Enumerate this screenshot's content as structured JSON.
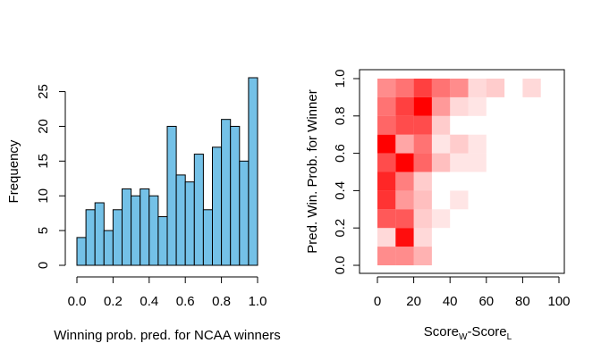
{
  "chart_data": [
    {
      "type": "bar",
      "subtype": "histogram",
      "xlabel": "Winning prob. pred. for NCAA winners",
      "ylabel": "Frequency",
      "bin_width": 0.05,
      "bin_starts": [
        0.0,
        0.05,
        0.1,
        0.15,
        0.2,
        0.25,
        0.3,
        0.35,
        0.4,
        0.45,
        0.5,
        0.55,
        0.6,
        0.65,
        0.7,
        0.75,
        0.8,
        0.85,
        0.9,
        0.95
      ],
      "values": [
        4,
        8,
        9,
        5,
        8,
        11,
        10,
        11,
        10,
        7,
        20,
        13,
        12,
        16,
        8,
        17,
        21,
        20,
        15,
        27
      ],
      "xlim": [
        0,
        1
      ],
      "ylim": [
        0,
        27
      ],
      "xticks": [
        "0.0",
        "0.2",
        "0.4",
        "0.6",
        "0.8",
        "1.0"
      ],
      "yticks": [
        "0",
        "5",
        "10",
        "15",
        "20",
        "25"
      ],
      "bar_color": "#74c1e7",
      "grid": false
    },
    {
      "type": "heatmap",
      "xlabel_main": "Score",
      "xlabel_sub_w": "W",
      "xlabel_dash": "-Score",
      "xlabel_sub_l": "L",
      "ylabel": "Pred. Win. Prob. for Winner",
      "xlim": [
        0,
        100
      ],
      "ylim": [
        0,
        1
      ],
      "x_bin_width": 10,
      "y_bin_width": 0.1,
      "xticks": [
        "0",
        "20",
        "40",
        "60",
        "80",
        "100"
      ],
      "yticks": [
        "0.0",
        "0.2",
        "0.4",
        "0.6",
        "0.8",
        "1.0"
      ],
      "color": "#ff0000",
      "cells": [
        {
          "x": 0,
          "y": 0.9,
          "intensity": 0.45
        },
        {
          "x": 10,
          "y": 0.9,
          "intensity": 0.55
        },
        {
          "x": 20,
          "y": 0.9,
          "intensity": 0.75
        },
        {
          "x": 30,
          "y": 0.9,
          "intensity": 0.55
        },
        {
          "x": 40,
          "y": 0.9,
          "intensity": 0.45
        },
        {
          "x": 50,
          "y": 0.9,
          "intensity": 0.15
        },
        {
          "x": 60,
          "y": 0.9,
          "intensity": 0.2
        },
        {
          "x": 80,
          "y": 0.9,
          "intensity": 0.15
        },
        {
          "x": 0,
          "y": 0.8,
          "intensity": 0.55
        },
        {
          "x": 10,
          "y": 0.8,
          "intensity": 0.75
        },
        {
          "x": 20,
          "y": 0.8,
          "intensity": 1.0
        },
        {
          "x": 30,
          "y": 0.8,
          "intensity": 0.4
        },
        {
          "x": 40,
          "y": 0.8,
          "intensity": 0.15
        },
        {
          "x": 50,
          "y": 0.8,
          "intensity": 0.1
        },
        {
          "x": 0,
          "y": 0.7,
          "intensity": 0.6
        },
        {
          "x": 10,
          "y": 0.7,
          "intensity": 0.7
        },
        {
          "x": 20,
          "y": 0.7,
          "intensity": 0.7
        },
        {
          "x": 30,
          "y": 0.7,
          "intensity": 0.2
        },
        {
          "x": 0,
          "y": 0.6,
          "intensity": 1.0
        },
        {
          "x": 10,
          "y": 0.6,
          "intensity": 0.35
        },
        {
          "x": 20,
          "y": 0.6,
          "intensity": 0.55
        },
        {
          "x": 30,
          "y": 0.6,
          "intensity": 0.1
        },
        {
          "x": 40,
          "y": 0.6,
          "intensity": 0.2
        },
        {
          "x": 50,
          "y": 0.6,
          "intensity": 0.1
        },
        {
          "x": 0,
          "y": 0.5,
          "intensity": 0.7
        },
        {
          "x": 10,
          "y": 0.5,
          "intensity": 1.0
        },
        {
          "x": 20,
          "y": 0.5,
          "intensity": 0.6
        },
        {
          "x": 30,
          "y": 0.5,
          "intensity": 0.25
        },
        {
          "x": 40,
          "y": 0.5,
          "intensity": 0.1
        },
        {
          "x": 50,
          "y": 0.5,
          "intensity": 0.1
        },
        {
          "x": 0,
          "y": 0.4,
          "intensity": 0.85
        },
        {
          "x": 10,
          "y": 0.4,
          "intensity": 0.5
        },
        {
          "x": 20,
          "y": 0.4,
          "intensity": 0.2
        },
        {
          "x": 0,
          "y": 0.3,
          "intensity": 0.8
        },
        {
          "x": 10,
          "y": 0.3,
          "intensity": 0.4
        },
        {
          "x": 20,
          "y": 0.3,
          "intensity": 0.25
        },
        {
          "x": 40,
          "y": 0.3,
          "intensity": 0.1
        },
        {
          "x": 0,
          "y": 0.2,
          "intensity": 0.65
        },
        {
          "x": 10,
          "y": 0.2,
          "intensity": 0.65
        },
        {
          "x": 20,
          "y": 0.2,
          "intensity": 0.2
        },
        {
          "x": 30,
          "y": 0.2,
          "intensity": 0.1
        },
        {
          "x": 0,
          "y": 0.1,
          "intensity": 0.15
        },
        {
          "x": 10,
          "y": 0.1,
          "intensity": 0.95
        },
        {
          "x": 20,
          "y": 0.1,
          "intensity": 0.15
        },
        {
          "x": 0,
          "y": 0.0,
          "intensity": 0.45
        },
        {
          "x": 10,
          "y": 0.0,
          "intensity": 0.45
        },
        {
          "x": 20,
          "y": 0.0,
          "intensity": 0.3
        }
      ],
      "grid": false
    }
  ]
}
